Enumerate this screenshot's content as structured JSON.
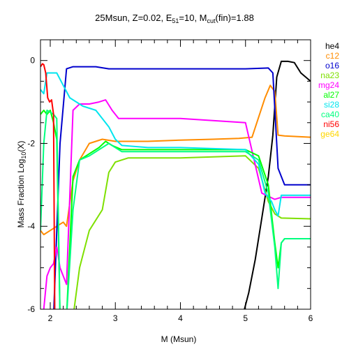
{
  "chart_data": {
    "type": "line",
    "title_parts": {
      "a": "25Msun, Z=0.02, E",
      "a_sub": "51",
      "b": "=10, M",
      "b_sub": "cut",
      "c": "(fin)=1.88"
    },
    "xlabel": "M (Msun)",
    "ylabel_parts": {
      "a": "Mass Fraction Log",
      "sub": "10",
      "b": "(X)"
    },
    "xlim": [
      1.85,
      6.0
    ],
    "ylim": [
      -6,
      0.5
    ],
    "xticks": [
      2,
      3,
      4,
      5,
      6
    ],
    "yticks": [
      0,
      -2,
      -4,
      -6
    ],
    "legend_position": "right, outside",
    "series": [
      {
        "name": "he4",
        "color": "#000000",
        "x": [
          1.85,
          4.95,
          5.05,
          5.15,
          5.25,
          5.35,
          5.42,
          5.48,
          5.55,
          5.65,
          5.75,
          5.85,
          6.0
        ],
        "y": [
          -6.2,
          -6.2,
          -5.6,
          -4.8,
          -3.8,
          -2.8,
          -1.8,
          -0.4,
          -0.02,
          -0.02,
          -0.05,
          -0.3,
          -0.5
        ]
      },
      {
        "name": "c12",
        "color": "#ff8c00",
        "x": [
          1.85,
          1.9,
          2.0,
          2.1,
          2.2,
          2.25,
          2.35,
          2.45,
          2.6,
          2.8,
          3.0,
          3.2,
          3.5,
          4.0,
          4.5,
          4.9,
          5.1,
          5.3,
          5.38,
          5.45,
          5.5,
          5.6,
          6.0
        ],
        "y": [
          -4.1,
          -4.2,
          -4.1,
          -4.0,
          -3.9,
          -4.0,
          -2.9,
          -2.4,
          -2.0,
          -1.9,
          -1.95,
          -1.95,
          -1.95,
          -1.92,
          -1.9,
          -1.88,
          -1.85,
          -0.9,
          -0.6,
          -0.75,
          -1.8,
          -1.82,
          -1.85
        ]
      },
      {
        "name": "o16",
        "color": "#0000cd",
        "x": [
          1.85,
          1.95,
          2.05,
          2.15,
          2.25,
          2.35,
          2.5,
          2.7,
          2.9,
          3.2,
          4.0,
          5.0,
          5.35,
          5.42,
          5.5,
          5.6,
          6.0
        ],
        "y": [
          -6.2,
          -6.2,
          -6.2,
          -2.0,
          -0.2,
          -0.15,
          -0.15,
          -0.15,
          -0.2,
          -0.2,
          -0.2,
          -0.2,
          -0.18,
          -0.3,
          -2.6,
          -3.0,
          -3.0
        ]
      },
      {
        "name": "na23",
        "color": "#7ee000",
        "x": [
          1.85,
          2.0,
          2.2,
          2.35,
          2.45,
          2.6,
          2.8,
          2.9,
          3.0,
          3.2,
          4.0,
          5.0,
          5.2,
          5.35,
          5.45,
          5.55,
          6.0
        ],
        "y": [
          -6.2,
          -6.2,
          -6.2,
          -6.2,
          -5.0,
          -4.1,
          -3.6,
          -2.7,
          -2.45,
          -2.35,
          -2.35,
          -2.3,
          -2.6,
          -3.4,
          -3.7,
          -3.8,
          -3.82
        ]
      },
      {
        "name": "mg24",
        "color": "#ff00ff",
        "x": [
          1.85,
          1.9,
          1.95,
          2.0,
          2.05,
          2.1,
          2.15,
          2.25,
          2.35,
          2.45,
          2.6,
          2.75,
          2.85,
          2.95,
          3.05,
          3.2,
          4.0,
          5.0,
          5.25,
          5.45,
          5.55,
          6.0
        ],
        "y": [
          -6.2,
          -6.0,
          -5.2,
          -5.0,
          -4.9,
          -4.5,
          -5.0,
          -5.4,
          -1.2,
          -1.05,
          -1.05,
          -1.0,
          -0.95,
          -1.2,
          -1.4,
          -1.4,
          -1.4,
          -1.5,
          -3.2,
          -3.35,
          -3.3,
          -3.3
        ]
      },
      {
        "name": "al27",
        "color": "#00ff00",
        "x": [
          1.85,
          1.9,
          1.95,
          2.0,
          2.05,
          2.1,
          2.15,
          2.25,
          2.35,
          2.45,
          2.6,
          2.75,
          2.85,
          2.95,
          3.1,
          3.3,
          4.0,
          5.0,
          5.2,
          5.35,
          5.45,
          5.5,
          5.55,
          5.6,
          6.0
        ],
        "y": [
          -1.3,
          -1.2,
          -1.3,
          -1.2,
          -1.5,
          -1.9,
          -6.2,
          -6.2,
          -2.8,
          -2.4,
          -2.25,
          -2.1,
          -1.95,
          -2.05,
          -2.15,
          -2.15,
          -2.15,
          -2.15,
          -2.3,
          -3.0,
          -4.4,
          -5.0,
          -4.4,
          -4.3,
          -4.3
        ]
      },
      {
        "name": "si28",
        "color": "#00e5ee",
        "x": [
          1.85,
          1.9,
          1.95,
          2.0,
          2.1,
          2.2,
          2.3,
          2.5,
          2.7,
          2.9,
          3.0,
          3.1,
          3.5,
          4.0,
          5.0,
          5.2,
          5.3,
          5.4,
          5.45,
          5.5,
          5.55,
          6.0
        ],
        "y": [
          -0.7,
          -0.8,
          -0.3,
          -0.3,
          -0.3,
          -0.6,
          -0.9,
          -1.1,
          -1.2,
          -1.6,
          -1.9,
          -2.05,
          -2.1,
          -2.1,
          -2.15,
          -2.5,
          -3.2,
          -3.4,
          -3.6,
          -3.75,
          -3.25,
          -3.25
        ]
      },
      {
        "name": "ca40",
        "color": "#00ff7f",
        "x": [
          1.85,
          1.9,
          1.95,
          2.0,
          2.05,
          2.1,
          2.15,
          2.25,
          2.35,
          2.45,
          2.6,
          2.75,
          2.9,
          3.1,
          3.3,
          4.0,
          5.0,
          5.2,
          5.35,
          5.45,
          5.5,
          5.55,
          5.6,
          6.0
        ],
        "y": [
          -4.1,
          -2.0,
          -1.2,
          -1.25,
          -1.3,
          -1.4,
          -6.2,
          -6.2,
          -3.6,
          -2.4,
          -2.3,
          -2.15,
          -2.0,
          -2.2,
          -2.2,
          -2.2,
          -2.2,
          -2.4,
          -3.2,
          -4.5,
          -5.5,
          -4.4,
          -4.3,
          -4.3
        ]
      },
      {
        "name": "ni56",
        "color": "#ff0000",
        "x": [
          1.85,
          1.88,
          1.9,
          1.93,
          1.96,
          1.99,
          2.02,
          2.05,
          2.07,
          2.1,
          2.12,
          2.15
        ],
        "y": [
          -0.15,
          -0.08,
          -0.1,
          -0.3,
          -0.9,
          -1.0,
          -0.95,
          -1.3,
          -6.2,
          -6.2,
          -6.2,
          -6.2
        ]
      },
      {
        "name": "ge64",
        "color": "#ffd700",
        "x": [],
        "y": []
      }
    ]
  }
}
